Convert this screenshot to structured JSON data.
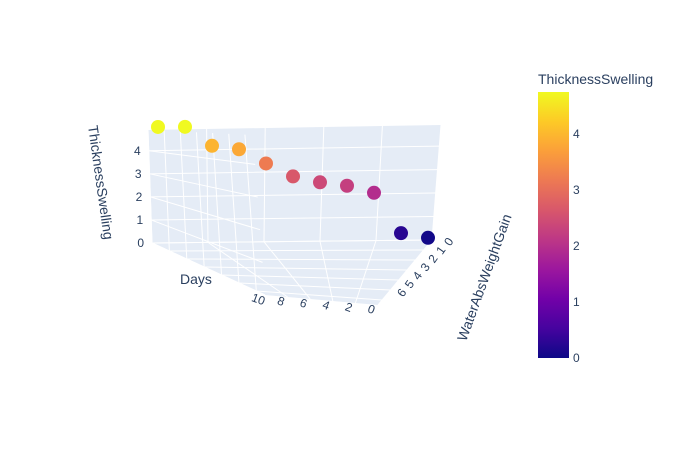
{
  "chart_data": {
    "type": "scatter3d",
    "axes": {
      "x": {
        "title": "Days",
        "ticks": [
          "0",
          "2",
          "4",
          "6",
          "8",
          "10"
        ]
      },
      "y": {
        "title": "WaterAbsWeightGain",
        "ticks": [
          "0",
          "1",
          "2",
          "3",
          "4",
          "5",
          "6"
        ]
      },
      "z": {
        "title": "ThicknessSwelling",
        "ticks": [
          "0",
          "1",
          "2",
          "3",
          "4"
        ]
      }
    },
    "colorbar": {
      "title": "ThicknessSwelling",
      "ticks": [
        "0",
        "1",
        "2",
        "3",
        "4"
      ],
      "range": [
        0,
        4.75
      ]
    },
    "points": [
      {
        "days": 10,
        "z": 4.75
      },
      {
        "days": 9,
        "z": 4.75
      },
      {
        "days": 8,
        "z": 3.95
      },
      {
        "days": 7,
        "z": 3.8
      },
      {
        "days": 6,
        "z": 3.2
      },
      {
        "days": 5,
        "z": 2.65
      },
      {
        "days": 4,
        "z": 2.4
      },
      {
        "days": 3,
        "z": 2.25
      },
      {
        "days": 2,
        "z": 1.95
      },
      {
        "days": 1,
        "z": 0.25
      },
      {
        "days": 0,
        "z": 0.05
      }
    ],
    "colorscale": [
      "#0d0887",
      "#46039f",
      "#7201a8",
      "#9c179e",
      "#bd3786",
      "#d8576b",
      "#ed7953",
      "#fb9f3a",
      "#fdca26",
      "#f0f921"
    ]
  }
}
